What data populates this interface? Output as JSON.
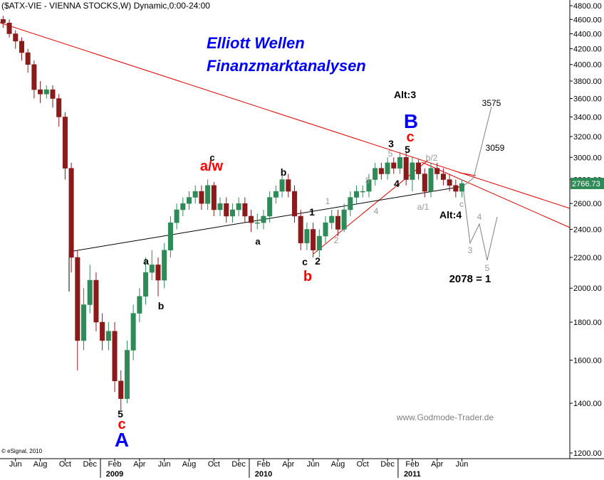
{
  "chart_data": {
    "type": "candlestick",
    "title": "($ATX-VIE - VIENNA STOCKS,W) Dynamic,0:00-24:00",
    "log_scale": true,
    "up_color": "#2e8b57",
    "down_color": "#8b1a1a",
    "x": [
      4,
      4.5,
      5,
      5.5,
      6,
      6.5,
      7,
      7.5,
      8,
      8.5,
      9,
      9.5,
      10,
      10.5,
      11,
      11.5,
      12,
      12.5,
      13,
      13.5,
      14,
      14.5,
      15,
      15.5,
      16,
      16.5,
      17,
      17.5,
      18,
      18.5,
      19,
      19.5,
      20,
      20.5,
      21,
      21.5,
      22,
      22.5,
      23,
      23.5,
      24,
      24.5,
      25,
      25.5,
      26,
      26.5,
      27,
      27.5,
      28,
      28.5,
      29,
      29.5,
      30,
      30.5,
      31,
      31.5,
      32,
      32.5,
      33,
      33.5,
      34,
      34.5,
      35,
      35.5,
      36,
      36.5,
      37,
      37.5,
      38,
      38.5,
      39,
      39.5,
      40,
      40.5,
      41
    ],
    "open": [
      4600,
      4550,
      4400,
      4300,
      4150,
      4000,
      3700,
      3650,
      3700,
      3600,
      3400,
      2900,
      2200,
      1700,
      1900,
      2050,
      1800,
      1700,
      1750,
      1500,
      1420,
      1650,
      1850,
      1950,
      2100,
      2150,
      2050,
      2250,
      2450,
      2550,
      2600,
      2650,
      2700,
      2600,
      2750,
      2550,
      2600,
      2500,
      2550,
      2600,
      2500,
      2450,
      2450,
      2500,
      2650,
      2700,
      2800,
      2700,
      2500,
      2300,
      2400,
      2250,
      2350,
      2450,
      2500,
      2400,
      2550,
      2650,
      2700,
      2700,
      2800,
      2900,
      2850,
      2950,
      2900,
      3000,
      2800,
      2950,
      2850,
      2700,
      2900,
      2850,
      2800,
      2750,
      2700
    ],
    "high": [
      4650,
      4600,
      4450,
      4350,
      4200,
      4050,
      3800,
      3750,
      3750,
      3650,
      3450,
      2950,
      2250,
      2000,
      2150,
      2100,
      1850,
      1800,
      1800,
      1550,
      1700,
      1900,
      2000,
      2200,
      2250,
      2200,
      2300,
      2500,
      2600,
      2650,
      2700,
      2750,
      2750,
      2800,
      2780,
      2650,
      2650,
      2600,
      2650,
      2650,
      2550,
      2520,
      2550,
      2700,
      2750,
      2850,
      2850,
      2750,
      2550,
      2450,
      2450,
      2400,
      2500,
      2550,
      2550,
      2600,
      2700,
      2750,
      2750,
      2850,
      2950,
      2950,
      3000,
      3000,
      3050,
      3050,
      3000,
      2980,
      2900,
      2950,
      2950,
      2900,
      2850,
      2800,
      2800
    ],
    "low": [
      4480,
      4350,
      4200,
      4050,
      3900,
      3600,
      3550,
      3600,
      3500,
      3300,
      2800,
      2100,
      1550,
      1650,
      1850,
      1750,
      1650,
      1650,
      1450,
      1370,
      1400,
      1600,
      1800,
      1900,
      2050,
      1950,
      2000,
      2200,
      2400,
      2500,
      2550,
      2600,
      2550,
      2550,
      2500,
      2500,
      2450,
      2450,
      2500,
      2450,
      2380,
      2400,
      2400,
      2450,
      2600,
      2650,
      2650,
      2450,
      2250,
      2250,
      2200,
      2200,
      2300,
      2400,
      2350,
      2380,
      2500,
      2600,
      2650,
      2650,
      2750,
      2800,
      2800,
      2850,
      2850,
      2750,
      2700,
      2800,
      2650,
      2650,
      2800,
      2750,
      2700,
      2650,
      2650
    ],
    "close": [
      4550,
      4400,
      4300,
      4150,
      4000,
      3700,
      3650,
      3700,
      3600,
      3400,
      2900,
      2200,
      1700,
      1900,
      2050,
      1800,
      1700,
      1750,
      1500,
      1420,
      1650,
      1850,
      1950,
      2100,
      2150,
      2050,
      2250,
      2450,
      2550,
      2600,
      2650,
      2700,
      2600,
      2750,
      2550,
      2600,
      2500,
      2550,
      2600,
      2500,
      2450,
      2450,
      2500,
      2650,
      2700,
      2800,
      2700,
      2500,
      2300,
      2400,
      2250,
      2350,
      2450,
      2500,
      2400,
      2550,
      2650,
      2700,
      2700,
      2800,
      2900,
      2850,
      2950,
      2900,
      3000,
      2800,
      2950,
      2850,
      2700,
      2900,
      2850,
      2800,
      2750,
      2700,
      2766.73
    ],
    "xlim": [
      3.75,
      49.7
    ],
    "ylim": [
      1200,
      4800
    ],
    "yticks": [
      {
        "value": 1200,
        "label": "1200.00"
      },
      {
        "value": 1400,
        "label": "1400.00"
      },
      {
        "value": 1600,
        "label": "1600.00"
      },
      {
        "value": 1800,
        "label": "1800.00"
      },
      {
        "value": 2000,
        "label": "2000.00"
      },
      {
        "value": 2200,
        "label": "2200.00"
      },
      {
        "value": 2400,
        "label": "2400.00"
      },
      {
        "value": 2600,
        "label": "2600.00"
      },
      {
        "value": 2800,
        "label": "2800.00"
      },
      {
        "value": 3000,
        "label": "3000.00"
      },
      {
        "value": 3200,
        "label": "3200.00"
      },
      {
        "value": 3400,
        "label": "3400.00"
      },
      {
        "value": 3600,
        "label": "3600.00"
      },
      {
        "value": 3800,
        "label": "3800.00"
      },
      {
        "value": 4000,
        "label": "4000.00"
      },
      {
        "value": 4200,
        "label": "4200.00"
      },
      {
        "value": 4400,
        "label": "4400.00"
      },
      {
        "value": 4600,
        "label": "4600.00"
      },
      {
        "value": 4800,
        "label": "4800.00"
      }
    ],
    "xticks": [
      {
        "value": 5,
        "label": "Jun"
      },
      {
        "value": 7,
        "label": "Aug"
      },
      {
        "value": 9,
        "label": "Oct"
      },
      {
        "value": 11,
        "label": "Dec"
      },
      {
        "value": 13,
        "label": "Feb"
      },
      {
        "value": 15,
        "label": "Apr"
      },
      {
        "value": 17,
        "label": "Jun"
      },
      {
        "value": 19,
        "label": "Aug"
      },
      {
        "value": 21,
        "label": "Oct"
      },
      {
        "value": 23,
        "label": "Dec"
      },
      {
        "value": 25,
        "label": "Feb"
      },
      {
        "value": 27,
        "label": "Apr"
      },
      {
        "value": 29,
        "label": "Jun"
      },
      {
        "value": 31,
        "label": "Aug"
      },
      {
        "value": 33,
        "label": "Oct"
      },
      {
        "value": 35,
        "label": "Dec"
      },
      {
        "value": 37,
        "label": "Feb"
      },
      {
        "value": 39,
        "label": "Apr"
      },
      {
        "value": 41,
        "label": "Jun"
      }
    ],
    "year_ticks": [
      {
        "value": 13,
        "label": "2009"
      },
      {
        "value": 25,
        "label": "2010"
      },
      {
        "value": 37,
        "label": "2011"
      }
    ],
    "annotations": [
      {
        "text": "Elliott Wellen",
        "color": "#0000ff"
      },
      {
        "text": "Finanzmarktanalysen",
        "color": "#0000ff"
      },
      {
        "text": "Alt:3",
        "color": "#000000"
      },
      {
        "text": "B",
        "color": "#0000ff"
      },
      {
        "text": "c",
        "color": "#ff0000"
      },
      {
        "text": "3",
        "color": "#000000"
      },
      {
        "text": "5",
        "color": "#999999"
      },
      {
        "text": "5",
        "color": "#000000"
      },
      {
        "text": "b/2",
        "color": "#999999"
      },
      {
        "text": "a/w",
        "color": "#ff0000"
      },
      {
        "text": "c",
        "color": "#000000"
      },
      {
        "text": "b",
        "color": "#000000"
      },
      {
        "text": "1",
        "color": "#999999"
      },
      {
        "text": "1",
        "color": "#000000"
      },
      {
        "text": "3",
        "color": "#999999"
      },
      {
        "text": "4",
        "color": "#000000"
      },
      {
        "text": "4",
        "color": "#999999"
      },
      {
        "text": "a/1",
        "color": "#999999"
      },
      {
        "text": "c",
        "color": "#999999"
      },
      {
        "text": "Alt:4",
        "color": "#000000"
      },
      {
        "text": "a",
        "color": "#000000"
      },
      {
        "text": "2",
        "color": "#999999"
      },
      {
        "text": "c",
        "color": "#000000"
      },
      {
        "text": "2",
        "color": "#000000"
      },
      {
        "text": "b",
        "color": "#ff0000"
      },
      {
        "text": "a",
        "color": "#000000"
      },
      {
        "text": "b",
        "color": "#000000"
      },
      {
        "text": "3575",
        "color": "#000000"
      },
      {
        "text": "3059",
        "color": "#000000"
      },
      {
        "text": "4",
        "color": "#999999"
      },
      {
        "text": "3",
        "color": "#999999"
      },
      {
        "text": "5",
        "color": "#999999"
      },
      {
        "text": "2078 = 1",
        "color": "#000000"
      },
      {
        "text": "www.Godmode-Trader.de",
        "color": "#808080"
      },
      {
        "text": "5",
        "color": "#000000"
      },
      {
        "text": "c",
        "color": "#ff0000"
      },
      {
        "text": "A",
        "color": "#0000ff"
      },
      {
        "text": "© eSignal, 2010",
        "color": "#000000"
      }
    ]
  }
}
